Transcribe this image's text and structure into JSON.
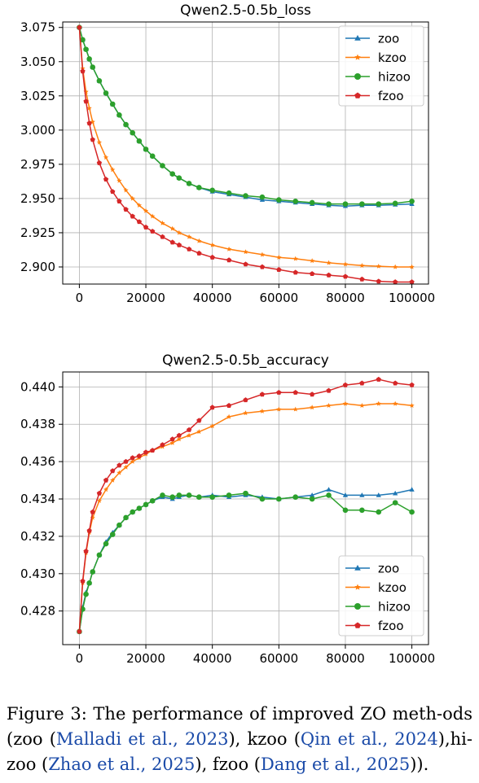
{
  "chart_data": [
    {
      "type": "line",
      "title": "Qwen2.5-0.5b_loss",
      "xlabel": "",
      "ylabel": "",
      "xlim": [
        -5000,
        105000
      ],
      "ylim": [
        2.8875,
        3.079
      ],
      "xticks": [
        0,
        20000,
        40000,
        60000,
        80000,
        100000
      ],
      "xtick_labels": [
        "0",
        "20000",
        "40000",
        "60000",
        "80000",
        "100000"
      ],
      "yticks": [
        2.9,
        2.925,
        2.95,
        2.975,
        3.0,
        3.025,
        3.05,
        3.075
      ],
      "ytick_labels": [
        "2.900",
        "2.925",
        "2.950",
        "2.975",
        "3.000",
        "3.025",
        "3.050",
        "3.075"
      ],
      "grid": true,
      "legend": "top-right",
      "series": [
        {
          "name": "zoo",
          "color": "#1f77b4",
          "marker": "triangle",
          "x": [
            0,
            1000,
            2000,
            3000,
            4000,
            6000,
            8000,
            10000,
            12000,
            14000,
            16000,
            18000,
            20000,
            22000,
            25000,
            28000,
            30000,
            33000,
            36000,
            40000,
            45000,
            50000,
            55000,
            60000,
            65000,
            70000,
            75000,
            80000,
            85000,
            90000,
            95000,
            100000
          ],
          "y": [
            3.075,
            3.066,
            3.059,
            3.052,
            3.046,
            3.036,
            3.027,
            3.019,
            3.011,
            3.004,
            2.998,
            2.992,
            2.986,
            2.981,
            2.974,
            2.968,
            2.965,
            2.961,
            2.958,
            2.955,
            2.953,
            2.951,
            2.949,
            2.948,
            2.947,
            2.946,
            2.945,
            2.9445,
            2.945,
            2.945,
            2.9455,
            2.946
          ]
        },
        {
          "name": "kzoo",
          "color": "#ff7f0e",
          "marker": "star",
          "x": [
            0,
            1000,
            2000,
            3000,
            4000,
            6000,
            8000,
            10000,
            12000,
            14000,
            16000,
            18000,
            20000,
            22000,
            25000,
            28000,
            30000,
            33000,
            36000,
            40000,
            45000,
            50000,
            55000,
            60000,
            65000,
            70000,
            75000,
            80000,
            85000,
            90000,
            95000,
            100000
          ],
          "y": [
            3.075,
            3.045,
            3.028,
            3.016,
            3.006,
            2.991,
            2.98,
            2.971,
            2.963,
            2.956,
            2.95,
            2.945,
            2.941,
            2.937,
            2.932,
            2.928,
            2.925,
            2.922,
            2.919,
            2.916,
            2.913,
            2.911,
            2.909,
            2.907,
            2.906,
            2.9045,
            2.903,
            2.902,
            2.901,
            2.9005,
            2.9,
            2.9
          ]
        },
        {
          "name": "hizoo",
          "color": "#2ca02c",
          "marker": "circle",
          "x": [
            0,
            1000,
            2000,
            3000,
            4000,
            6000,
            8000,
            10000,
            12000,
            14000,
            16000,
            18000,
            20000,
            22000,
            25000,
            28000,
            30000,
            33000,
            36000,
            40000,
            45000,
            50000,
            55000,
            60000,
            65000,
            70000,
            75000,
            80000,
            85000,
            90000,
            95000,
            100000
          ],
          "y": [
            3.075,
            3.066,
            3.059,
            3.052,
            3.046,
            3.036,
            3.027,
            3.019,
            3.011,
            3.004,
            2.998,
            2.992,
            2.986,
            2.981,
            2.974,
            2.968,
            2.965,
            2.961,
            2.958,
            2.956,
            2.954,
            2.952,
            2.951,
            2.949,
            2.948,
            2.947,
            2.946,
            2.946,
            2.946,
            2.946,
            2.9465,
            2.948
          ]
        },
        {
          "name": "fzoo",
          "color": "#d62728",
          "marker": "pentagon",
          "x": [
            0,
            1000,
            2000,
            3000,
            4000,
            6000,
            8000,
            10000,
            12000,
            14000,
            16000,
            18000,
            20000,
            22000,
            25000,
            28000,
            30000,
            33000,
            36000,
            40000,
            45000,
            50000,
            55000,
            60000,
            65000,
            70000,
            75000,
            80000,
            85000,
            90000,
            95000,
            100000
          ],
          "y": [
            3.075,
            3.043,
            3.021,
            3.005,
            2.993,
            2.976,
            2.964,
            2.955,
            2.948,
            2.942,
            2.937,
            2.933,
            2.929,
            2.926,
            2.922,
            2.918,
            2.916,
            2.913,
            2.91,
            2.907,
            2.905,
            2.902,
            2.9,
            2.898,
            2.896,
            2.895,
            2.894,
            2.893,
            2.891,
            2.8895,
            2.889,
            2.889
          ]
        }
      ]
    },
    {
      "type": "line",
      "title": "Qwen2.5-0.5b_accuracy",
      "xlabel": "",
      "ylabel": "",
      "xlim": [
        -5000,
        105000
      ],
      "ylim": [
        0.4262,
        0.4408
      ],
      "xticks": [
        0,
        20000,
        40000,
        60000,
        80000,
        100000
      ],
      "xtick_labels": [
        "0",
        "20000",
        "40000",
        "60000",
        "80000",
        "100000"
      ],
      "yticks": [
        0.428,
        0.43,
        0.432,
        0.434,
        0.436,
        0.438,
        0.44
      ],
      "ytick_labels": [
        "0.428",
        "0.430",
        "0.432",
        "0.434",
        "0.436",
        "0.438",
        "0.440"
      ],
      "grid": true,
      "legend": "bottom-right",
      "series": [
        {
          "name": "zoo",
          "color": "#1f77b4",
          "marker": "triangle",
          "x": [
            0,
            1000,
            2000,
            3000,
            4000,
            6000,
            8000,
            10000,
            12000,
            14000,
            16000,
            18000,
            20000,
            22000,
            25000,
            28000,
            30000,
            33000,
            36000,
            40000,
            45000,
            50000,
            55000,
            60000,
            65000,
            70000,
            75000,
            80000,
            85000,
            90000,
            95000,
            100000
          ],
          "y": [
            0.4269,
            0.4282,
            0.429,
            0.4295,
            0.4301,
            0.431,
            0.4317,
            0.4322,
            0.4326,
            0.433,
            0.4333,
            0.4335,
            0.4337,
            0.4339,
            0.4341,
            0.434,
            0.4341,
            0.4342,
            0.4341,
            0.4342,
            0.4341,
            0.4342,
            0.4341,
            0.434,
            0.4341,
            0.4342,
            0.4345,
            0.4342,
            0.4342,
            0.4342,
            0.4343,
            0.4345
          ]
        },
        {
          "name": "kzoo",
          "color": "#ff7f0e",
          "marker": "star",
          "x": [
            0,
            1000,
            2000,
            3000,
            4000,
            6000,
            8000,
            10000,
            12000,
            14000,
            16000,
            18000,
            20000,
            22000,
            25000,
            28000,
            30000,
            33000,
            36000,
            40000,
            45000,
            50000,
            55000,
            60000,
            65000,
            70000,
            75000,
            80000,
            85000,
            90000,
            95000,
            100000
          ],
          "y": [
            0.4269,
            0.4295,
            0.4311,
            0.4322,
            0.433,
            0.4339,
            0.4345,
            0.435,
            0.4354,
            0.4357,
            0.436,
            0.4362,
            0.4364,
            0.4366,
            0.4368,
            0.437,
            0.4372,
            0.4374,
            0.4376,
            0.4379,
            0.4384,
            0.4386,
            0.4387,
            0.4388,
            0.4388,
            0.4389,
            0.439,
            0.4391,
            0.439,
            0.4391,
            0.4391,
            0.439
          ]
        },
        {
          "name": "hizoo",
          "color": "#2ca02c",
          "marker": "circle",
          "x": [
            0,
            1000,
            2000,
            3000,
            4000,
            6000,
            8000,
            10000,
            12000,
            14000,
            16000,
            18000,
            20000,
            22000,
            25000,
            28000,
            30000,
            33000,
            36000,
            40000,
            45000,
            50000,
            55000,
            60000,
            65000,
            70000,
            75000,
            80000,
            85000,
            90000,
            95000,
            100000
          ],
          "y": [
            0.4269,
            0.4281,
            0.4289,
            0.4295,
            0.4301,
            0.431,
            0.4316,
            0.4321,
            0.4326,
            0.433,
            0.4333,
            0.4335,
            0.4337,
            0.4339,
            0.4342,
            0.4341,
            0.4342,
            0.4342,
            0.4341,
            0.4341,
            0.4342,
            0.4343,
            0.434,
            0.434,
            0.4341,
            0.434,
            0.4342,
            0.4334,
            0.4334,
            0.4333,
            0.4338,
            0.4333
          ]
        },
        {
          "name": "fzoo",
          "color": "#d62728",
          "marker": "pentagon",
          "x": [
            0,
            1000,
            2000,
            3000,
            4000,
            6000,
            8000,
            10000,
            12000,
            14000,
            16000,
            18000,
            20000,
            22000,
            25000,
            28000,
            30000,
            33000,
            36000,
            40000,
            45000,
            50000,
            55000,
            60000,
            65000,
            70000,
            75000,
            80000,
            85000,
            90000,
            95000,
            100000
          ],
          "y": [
            0.4269,
            0.4296,
            0.4312,
            0.4323,
            0.4333,
            0.4343,
            0.435,
            0.4355,
            0.4358,
            0.436,
            0.4362,
            0.4363,
            0.4365,
            0.4366,
            0.4369,
            0.4372,
            0.4374,
            0.4377,
            0.4382,
            0.4389,
            0.439,
            0.4393,
            0.4396,
            0.4397,
            0.4397,
            0.4396,
            0.4398,
            0.4401,
            0.4402,
            0.4404,
            0.4402,
            0.4401
          ]
        }
      ]
    }
  ],
  "caption": {
    "prefix": "Figure 3:  The performance of improved ZO meth-ods (zoo (",
    "cite1": "Malladi et al., 2023",
    "mid1": "), kzoo (",
    "cite2": "Qin et al., 2024",
    "mid2": "),hi-zoo (",
    "cite3": "Zhao et al., 2025",
    "mid3": "), fzoo (",
    "cite4": "Dang et al., 2025",
    "suffix": "))."
  }
}
